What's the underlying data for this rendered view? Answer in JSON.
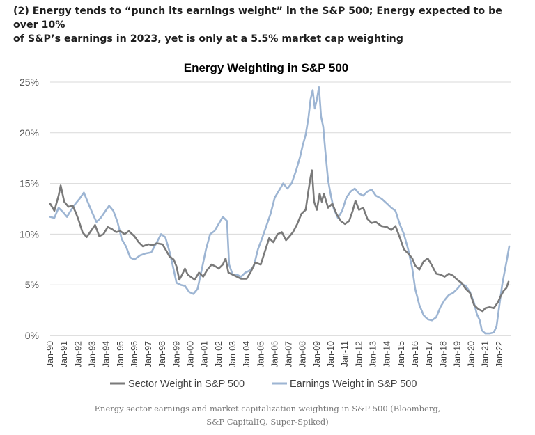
{
  "headline": {
    "line1": "(2) Energy tends to “punch its earnings weight” in the S&P 500; Energy expected to be over 10%",
    "line2": "of S&P’s earnings in 2023, yet is only at a 5.5% market cap weighting"
  },
  "caption": {
    "line1": "Energy sector earnings and market capitalization weighting in S&P 500 (Bloomberg,",
    "line2": "S&P CapitalIQ, Super-Spiked)"
  },
  "chart_data": {
    "type": "line",
    "title": "Energy Weighting in S&P 500",
    "xlabel": "",
    "ylabel": "",
    "ylim": [
      0,
      25
    ],
    "yticks": [
      "0%",
      "5%",
      "10%",
      "15%",
      "20%",
      "25%"
    ],
    "xlim": [
      1990.0,
      2022.8
    ],
    "xticks": [
      "Jan-90",
      "Jan-91",
      "Jan-92",
      "Jan-93",
      "Jan-94",
      "Jan-95",
      "Jan-96",
      "Jan-97",
      "Jan-98",
      "Jan-99",
      "Jan-00",
      "Jan-01",
      "Jan-02",
      "Jan-03",
      "Jan-04",
      "Jan-05",
      "Jan-06",
      "Jan-07",
      "Jan-08",
      "Jan-09",
      "Jan-10",
      "Jan-11",
      "Jan-12",
      "Jan-13",
      "Jan-14",
      "Jan-15",
      "Jan-16",
      "Jan-17",
      "Jan-18",
      "Jan-19",
      "Jan-20",
      "Jan-21",
      "Jan-22"
    ],
    "grid": "horizontal",
    "legend": "bottom",
    "series": [
      {
        "name": "Sector Weight in S&P 500",
        "color": "#7a7a7a",
        "points": [
          [
            1990.0,
            13.0
          ],
          [
            1990.3,
            12.3
          ],
          [
            1990.6,
            13.8
          ],
          [
            1990.75,
            14.8
          ],
          [
            1991.0,
            13.2
          ],
          [
            1991.3,
            12.7
          ],
          [
            1991.6,
            12.8
          ],
          [
            1991.8,
            12.2
          ],
          [
            1992.0,
            11.5
          ],
          [
            1992.3,
            10.2
          ],
          [
            1992.6,
            9.7
          ],
          [
            1992.9,
            10.3
          ],
          [
            1993.2,
            10.9
          ],
          [
            1993.5,
            9.8
          ],
          [
            1993.8,
            10.0
          ],
          [
            1994.1,
            10.7
          ],
          [
            1994.4,
            10.5
          ],
          [
            1994.7,
            10.2
          ],
          [
            1995.0,
            10.3
          ],
          [
            1995.3,
            10.0
          ],
          [
            1995.6,
            10.3
          ],
          [
            1996.0,
            9.8
          ],
          [
            1996.3,
            9.2
          ],
          [
            1996.6,
            8.8
          ],
          [
            1997.0,
            9.0
          ],
          [
            1997.3,
            8.9
          ],
          [
            1997.6,
            9.1
          ],
          [
            1998.0,
            9.0
          ],
          [
            1998.3,
            8.3
          ],
          [
            1998.5,
            7.8
          ],
          [
            1998.8,
            7.5
          ],
          [
            1999.0,
            6.8
          ],
          [
            1999.2,
            5.5
          ],
          [
            1999.4,
            6.0
          ],
          [
            1999.6,
            6.6
          ],
          [
            1999.8,
            6.0
          ],
          [
            2000.0,
            5.8
          ],
          [
            2000.3,
            5.5
          ],
          [
            2000.6,
            6.2
          ],
          [
            2000.9,
            5.8
          ],
          [
            2001.2,
            6.5
          ],
          [
            2001.5,
            7.0
          ],
          [
            2001.8,
            6.8
          ],
          [
            2002.0,
            6.6
          ],
          [
            2002.3,
            7.0
          ],
          [
            2002.5,
            7.6
          ],
          [
            2002.7,
            6.2
          ],
          [
            2003.0,
            6.0
          ],
          [
            2003.3,
            5.8
          ],
          [
            2003.6,
            5.6
          ],
          [
            2004.0,
            5.6
          ],
          [
            2004.3,
            6.3
          ],
          [
            2004.6,
            7.2
          ],
          [
            2005.0,
            7.0
          ],
          [
            2005.3,
            8.3
          ],
          [
            2005.6,
            9.6
          ],
          [
            2005.9,
            9.2
          ],
          [
            2006.2,
            10.0
          ],
          [
            2006.5,
            10.2
          ],
          [
            2006.8,
            9.4
          ],
          [
            2007.0,
            9.7
          ],
          [
            2007.3,
            10.2
          ],
          [
            2007.6,
            11.0
          ],
          [
            2007.9,
            12.0
          ],
          [
            2008.2,
            12.4
          ],
          [
            2008.4,
            14.3
          ],
          [
            2008.55,
            15.6
          ],
          [
            2008.65,
            16.3
          ],
          [
            2008.8,
            13.2
          ],
          [
            2009.0,
            12.4
          ],
          [
            2009.2,
            14.0
          ],
          [
            2009.35,
            13.2
          ],
          [
            2009.5,
            14.0
          ],
          [
            2009.8,
            12.6
          ],
          [
            2010.1,
            13.0
          ],
          [
            2010.4,
            12.0
          ],
          [
            2010.7,
            11.3
          ],
          [
            2011.0,
            11.0
          ],
          [
            2011.3,
            11.3
          ],
          [
            2011.55,
            12.3
          ],
          [
            2011.75,
            13.3
          ],
          [
            2012.0,
            12.4
          ],
          [
            2012.3,
            12.6
          ],
          [
            2012.6,
            11.5
          ],
          [
            2012.9,
            11.1
          ],
          [
            2013.2,
            11.2
          ],
          [
            2013.6,
            10.8
          ],
          [
            2014.0,
            10.7
          ],
          [
            2014.3,
            10.4
          ],
          [
            2014.6,
            10.8
          ],
          [
            2014.9,
            9.7
          ],
          [
            2015.2,
            8.5
          ],
          [
            2015.5,
            8.1
          ],
          [
            2015.8,
            7.6
          ],
          [
            2016.0,
            6.9
          ],
          [
            2016.3,
            6.5
          ],
          [
            2016.6,
            7.3
          ],
          [
            2016.9,
            7.6
          ],
          [
            2017.2,
            6.9
          ],
          [
            2017.5,
            6.1
          ],
          [
            2017.8,
            6.0
          ],
          [
            2018.1,
            5.8
          ],
          [
            2018.4,
            6.1
          ],
          [
            2018.7,
            5.9
          ],
          [
            2019.0,
            5.5
          ],
          [
            2019.3,
            5.2
          ],
          [
            2019.6,
            4.6
          ],
          [
            2019.9,
            4.2
          ],
          [
            2020.2,
            3.0
          ],
          [
            2020.5,
            2.6
          ],
          [
            2020.8,
            2.4
          ],
          [
            2021.0,
            2.7
          ],
          [
            2021.3,
            2.8
          ],
          [
            2021.6,
            2.7
          ],
          [
            2021.9,
            3.3
          ],
          [
            2022.1,
            3.9
          ],
          [
            2022.3,
            4.4
          ],
          [
            2022.5,
            4.7
          ],
          [
            2022.65,
            5.3
          ]
        ]
      },
      {
        "name": "Earnings Weight in S&P 500",
        "color": "#9db5d3",
        "points": [
          [
            1990.0,
            11.7
          ],
          [
            1990.3,
            11.6
          ],
          [
            1990.6,
            12.6
          ],
          [
            1990.9,
            12.2
          ],
          [
            1991.2,
            11.7
          ],
          [
            1991.5,
            12.4
          ],
          [
            1991.8,
            13.0
          ],
          [
            1992.1,
            13.5
          ],
          [
            1992.4,
            14.1
          ],
          [
            1992.7,
            13.1
          ],
          [
            1993.0,
            12.1
          ],
          [
            1993.3,
            11.2
          ],
          [
            1993.6,
            11.6
          ],
          [
            1993.9,
            12.2
          ],
          [
            1994.2,
            12.8
          ],
          [
            1994.5,
            12.3
          ],
          [
            1994.8,
            11.2
          ],
          [
            1995.1,
            9.5
          ],
          [
            1995.4,
            8.8
          ],
          [
            1995.7,
            7.7
          ],
          [
            1996.0,
            7.5
          ],
          [
            1996.4,
            7.9
          ],
          [
            1996.8,
            8.1
          ],
          [
            1997.2,
            8.2
          ],
          [
            1997.6,
            9.2
          ],
          [
            1997.9,
            10.0
          ],
          [
            1998.2,
            9.7
          ],
          [
            1998.5,
            8.3
          ],
          [
            1998.8,
            6.5
          ],
          [
            1999.0,
            5.2
          ],
          [
            1999.3,
            5.0
          ],
          [
            1999.6,
            4.9
          ],
          [
            1999.9,
            4.3
          ],
          [
            2000.2,
            4.1
          ],
          [
            2000.5,
            4.6
          ],
          [
            2000.8,
            6.5
          ],
          [
            2001.1,
            8.5
          ],
          [
            2001.4,
            10.0
          ],
          [
            2001.7,
            10.3
          ],
          [
            2002.0,
            11.0
          ],
          [
            2002.3,
            11.7
          ],
          [
            2002.6,
            11.3
          ],
          [
            2002.75,
            7.0
          ],
          [
            2003.0,
            6.0
          ],
          [
            2003.3,
            6.0
          ],
          [
            2003.6,
            5.8
          ],
          [
            2003.9,
            6.2
          ],
          [
            2004.2,
            6.4
          ],
          [
            2004.5,
            6.8
          ],
          [
            2004.8,
            8.5
          ],
          [
            2005.1,
            9.6
          ],
          [
            2005.4,
            10.8
          ],
          [
            2005.7,
            12.0
          ],
          [
            2006.0,
            13.6
          ],
          [
            2006.3,
            14.3
          ],
          [
            2006.6,
            15.0
          ],
          [
            2006.9,
            14.5
          ],
          [
            2007.2,
            15.0
          ],
          [
            2007.5,
            16.2
          ],
          [
            2007.8,
            17.6
          ],
          [
            2008.0,
            18.8
          ],
          [
            2008.2,
            19.8
          ],
          [
            2008.4,
            21.5
          ],
          [
            2008.55,
            23.3
          ],
          [
            2008.7,
            24.2
          ],
          [
            2008.85,
            22.4
          ],
          [
            2009.0,
            23.3
          ],
          [
            2009.15,
            24.5
          ],
          [
            2009.3,
            21.6
          ],
          [
            2009.45,
            20.6
          ],
          [
            2009.6,
            18.2
          ],
          [
            2009.8,
            15.3
          ],
          [
            2010.0,
            13.8
          ],
          [
            2010.2,
            12.5
          ],
          [
            2010.5,
            11.6
          ],
          [
            2010.8,
            12.3
          ],
          [
            2011.1,
            13.6
          ],
          [
            2011.4,
            14.2
          ],
          [
            2011.7,
            14.5
          ],
          [
            2012.0,
            14.0
          ],
          [
            2012.3,
            13.8
          ],
          [
            2012.6,
            14.2
          ],
          [
            2012.9,
            14.4
          ],
          [
            2013.2,
            13.8
          ],
          [
            2013.6,
            13.5
          ],
          [
            2014.0,
            13.0
          ],
          [
            2014.3,
            12.6
          ],
          [
            2014.6,
            12.3
          ],
          [
            2014.9,
            11.0
          ],
          [
            2015.2,
            10.0
          ],
          [
            2015.5,
            8.5
          ],
          [
            2015.8,
            6.6
          ],
          [
            2016.0,
            4.6
          ],
          [
            2016.3,
            3.0
          ],
          [
            2016.6,
            2.0
          ],
          [
            2016.9,
            1.6
          ],
          [
            2017.2,
            1.5
          ],
          [
            2017.5,
            1.8
          ],
          [
            2017.8,
            2.8
          ],
          [
            2018.1,
            3.5
          ],
          [
            2018.4,
            4.0
          ],
          [
            2018.7,
            4.2
          ],
          [
            2019.0,
            4.6
          ],
          [
            2019.3,
            5.1
          ],
          [
            2019.6,
            4.9
          ],
          [
            2019.9,
            4.3
          ],
          [
            2020.2,
            3.2
          ],
          [
            2020.4,
            2.1
          ],
          [
            2020.6,
            1.5
          ],
          [
            2020.75,
            0.5
          ],
          [
            2021.0,
            0.2
          ],
          [
            2021.3,
            0.2
          ],
          [
            2021.6,
            0.3
          ],
          [
            2021.8,
            0.9
          ],
          [
            2022.0,
            3.0
          ],
          [
            2022.2,
            5.0
          ],
          [
            2022.4,
            6.5
          ],
          [
            2022.55,
            7.6
          ],
          [
            2022.7,
            8.8
          ]
        ]
      }
    ]
  }
}
